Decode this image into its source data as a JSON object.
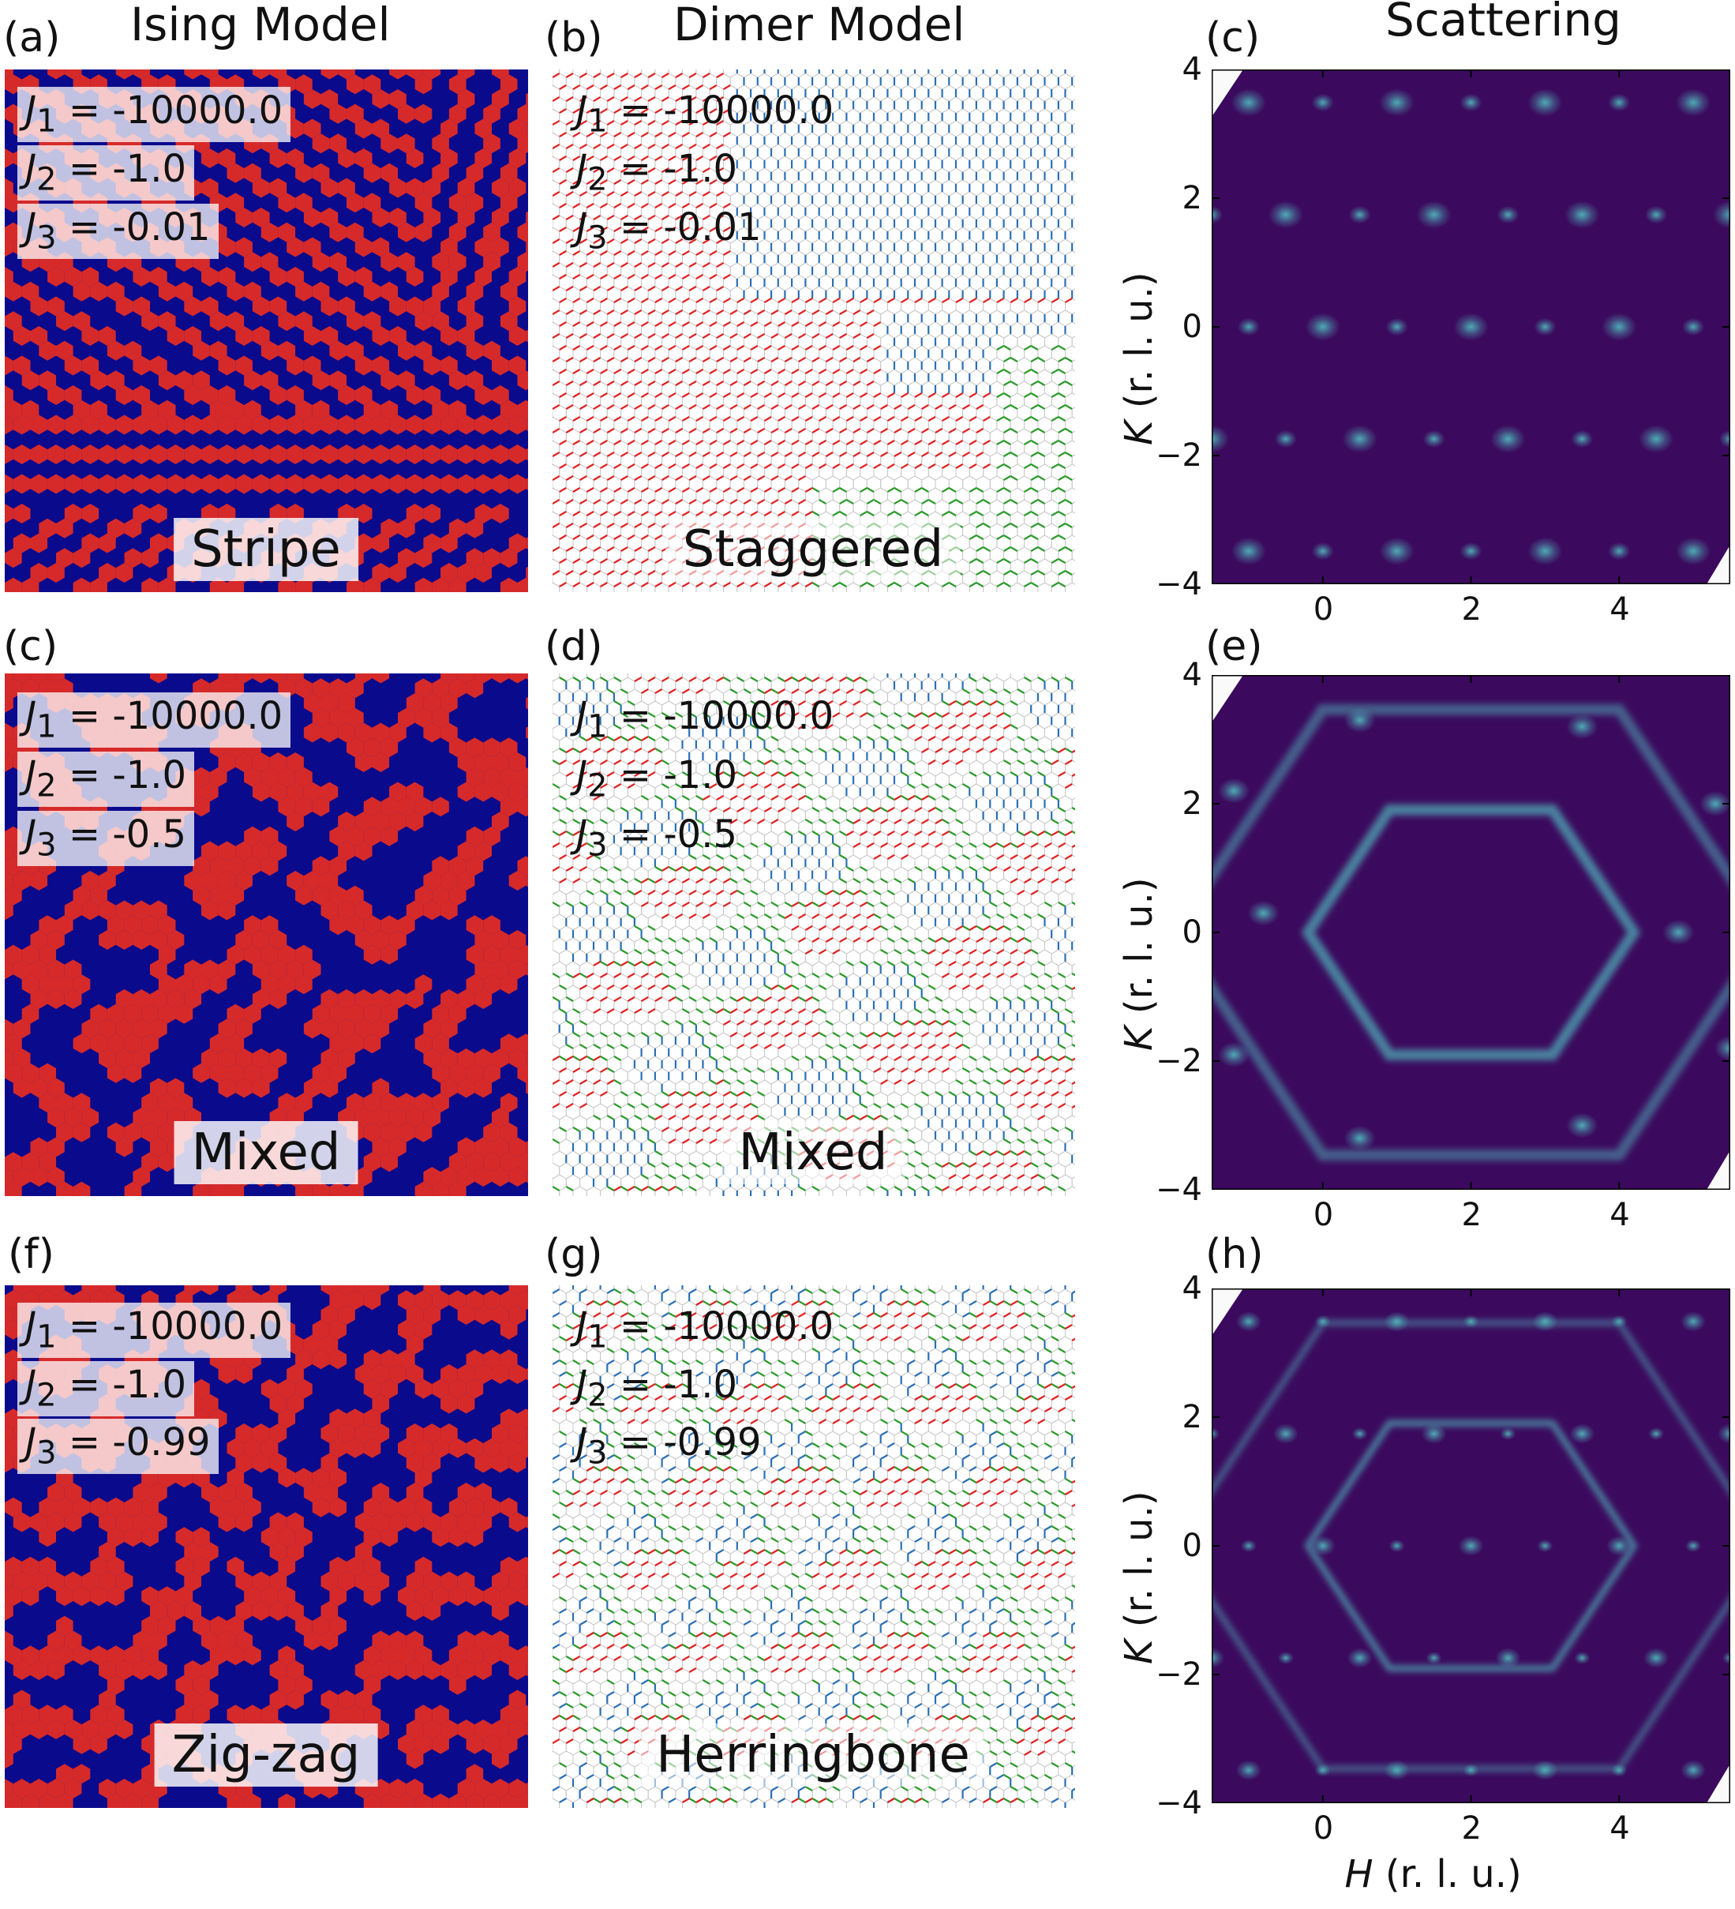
{
  "columns": {
    "ising": "Ising Model",
    "dimer": "Dimer Model",
    "scattering": "Scattering"
  },
  "rows": [
    {
      "ising_label": "(a)",
      "dimer_label": "(b)",
      "scatter_label": "(c)",
      "j1": "= -10000.0",
      "j2": "= -1.0",
      "j3": "= -0.01",
      "ising_phase": "Stripe",
      "dimer_phase": "Staggered"
    },
    {
      "ising_label": "(c)",
      "dimer_label": "(d)",
      "scatter_label": "(e)",
      "j1": "= -10000.0",
      "j2": "= -1.0",
      "j3": "= -0.5",
      "ising_phase": "Mixed",
      "dimer_phase": "Mixed"
    },
    {
      "ising_label": "(f)",
      "dimer_label": "(g)",
      "scatter_label": "(h)",
      "j1": "= -10000.0",
      "j2": "= -1.0",
      "j3": "= -0.99",
      "ising_phase": "Zig-zag",
      "dimer_phase": "Herringbone"
    }
  ],
  "axes": {
    "x_symbol": "H",
    "x_unit": " (r. l. u.)",
    "y_symbol": "K",
    "y_unit": " (r. l. u.)",
    "x_ticks": [
      "0",
      "2",
      "4"
    ],
    "y_ticks": [
      "4",
      "2",
      "0",
      "−2",
      "−4"
    ]
  },
  "colors": {
    "spin_up": "#d62a2a",
    "spin_down": "#0a0a8c",
    "scatter_bg": "#3b0a5e",
    "peak": "#4fb3b8",
    "dimer_red": "#e02020",
    "dimer_green": "#2a9a2a",
    "dimer_blue": "#2a6fb5"
  },
  "chart_data": [
    {
      "type": "heatmap",
      "panel": "(c)",
      "xlabel": "",
      "ylabel": "K (r. l. u.)",
      "xlim": [
        -1.5,
        5.5
      ],
      "ylim": [
        -4,
        4
      ],
      "x_ticks": [
        0,
        2,
        4
      ],
      "y_ticks": [
        -4,
        -2,
        0,
        2,
        4
      ]
    },
    {
      "type": "heatmap",
      "panel": "(e)",
      "xlabel": "",
      "ylabel": "K (r. l. u.)",
      "xlim": [
        -1.5,
        5.5
      ],
      "ylim": [
        -4,
        4
      ],
      "x_ticks": [
        0,
        2,
        4
      ],
      "y_ticks": [
        -4,
        -2,
        0,
        2,
        4
      ]
    },
    {
      "type": "heatmap",
      "panel": "(h)",
      "xlabel": "H (r. l. u.)",
      "ylabel": "K (r. l. u.)",
      "xlim": [
        -1.5,
        5.5
      ],
      "ylim": [
        -4,
        4
      ],
      "x_ticks": [
        0,
        2,
        4
      ],
      "y_ticks": [
        -4,
        -2,
        0,
        2,
        4
      ]
    }
  ]
}
